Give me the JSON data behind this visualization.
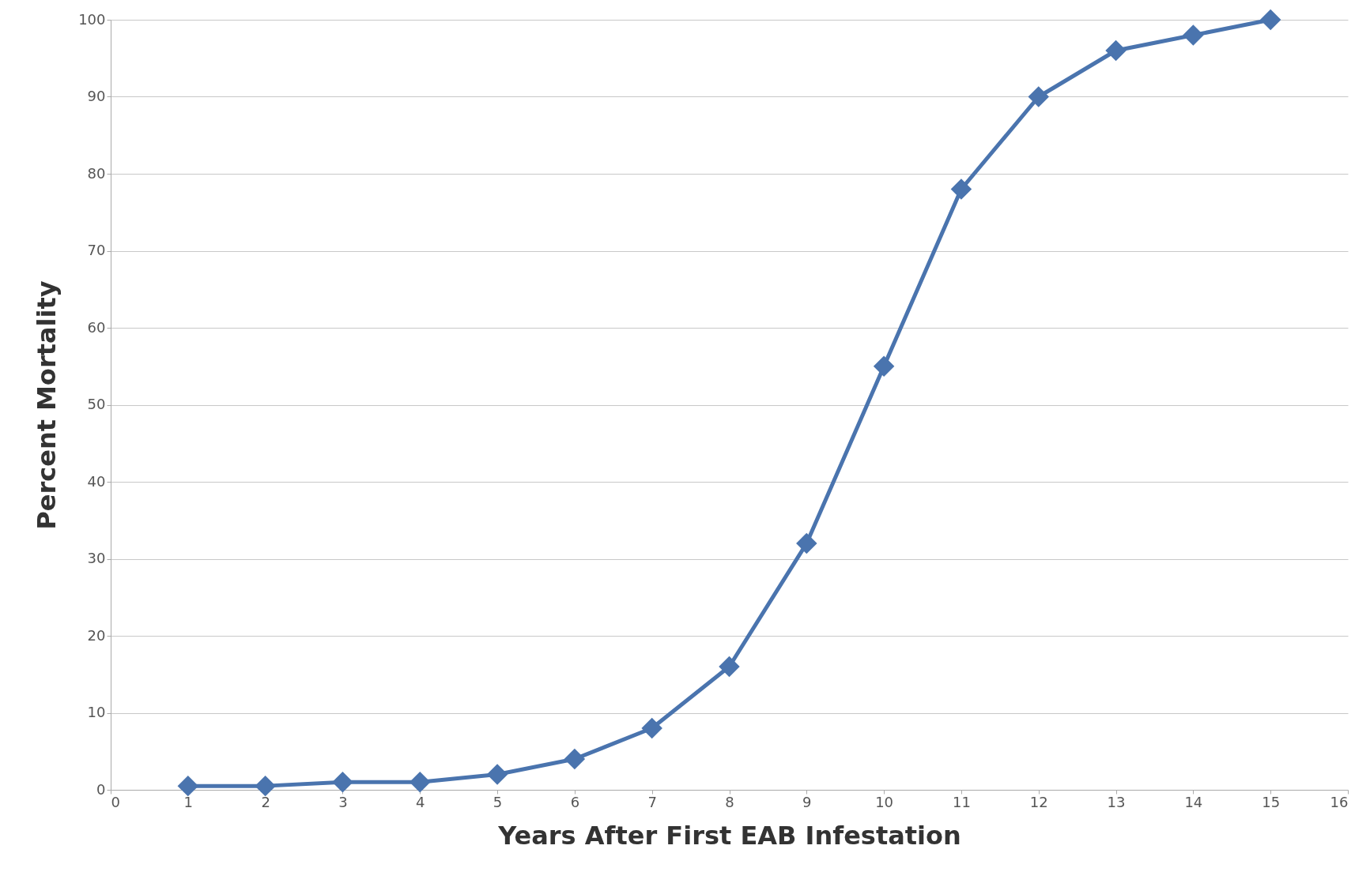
{
  "chart_data": {
    "type": "line",
    "xlabel": "Years After First EAB Infestation",
    "ylabel": "Percent Mortality",
    "x": [
      1,
      2,
      3,
      4,
      5,
      6,
      7,
      8,
      9,
      10,
      11,
      12,
      13,
      14,
      15
    ],
    "series": [
      {
        "color": "#4a74ae",
        "values": [
          0.5,
          0.5,
          1,
          1,
          2,
          4,
          8,
          16,
          32,
          55,
          78,
          90,
          96,
          98,
          100
        ]
      }
    ],
    "xlim": [
      0,
      16
    ],
    "xticks": [
      0,
      1,
      2,
      3,
      4,
      5,
      6,
      7,
      8,
      9,
      10,
      11,
      12,
      13,
      14,
      15,
      16
    ],
    "ylim": [
      0,
      100
    ],
    "yticks": [
      0,
      10,
      20,
      30,
      40,
      50,
      60,
      70,
      80,
      90,
      100
    ],
    "grid": "y",
    "marker": "diamond",
    "line_style": "solid"
  }
}
